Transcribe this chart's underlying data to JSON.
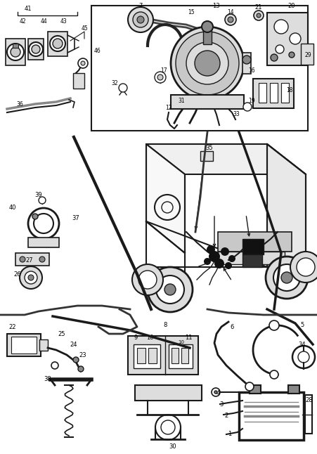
{
  "bg_color": "#ffffff",
  "line_color": "#1a1a1a",
  "fig_width": 4.51,
  "fig_height": 6.46,
  "dpi": 100,
  "gray_fill": "#c8c8c8",
  "dark_fill": "#111111",
  "mid_gray": "#888888",
  "light_gray": "#dddddd"
}
